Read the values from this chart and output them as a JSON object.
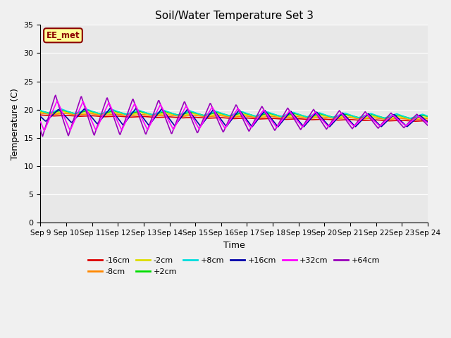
{
  "title": "Soil/Water Temperature Set 3",
  "xlabel": "Time",
  "ylabel": "Temperature (C)",
  "ylim": [
    0,
    35
  ],
  "background_color": "#f0f0f0",
  "plot_bg_color": "#e8e8e8",
  "annotation_text": "EE_met",
  "annotation_box_color": "#ffff99",
  "annotation_border_color": "#8B0000",
  "series_names": [
    "-16cm",
    "-8cm",
    "-2cm",
    "+2cm",
    "+8cm",
    "+16cm",
    "+32cm",
    "+64cm"
  ],
  "series_colors": [
    "#dd0000",
    "#ff8800",
    "#dddd00",
    "#00dd00",
    "#00dddd",
    "#0000aa",
    "#ff00ff",
    "#9900bb"
  ],
  "xtick_labels": [
    "Sep 9",
    "Sep 10",
    "Sep 11",
    "Sep 12",
    "Sep 13",
    "Sep 14",
    "Sep 15",
    "Sep 16",
    "Sep 17",
    "Sep 18",
    "Sep 19",
    "Sep 20",
    "Sep 21",
    "Sep 22",
    "Sep 23",
    "Sep 24"
  ],
  "ytick_vals": [
    0,
    5,
    10,
    15,
    20,
    25,
    30,
    35
  ],
  "n_days": 15,
  "samples_per_day": 48
}
